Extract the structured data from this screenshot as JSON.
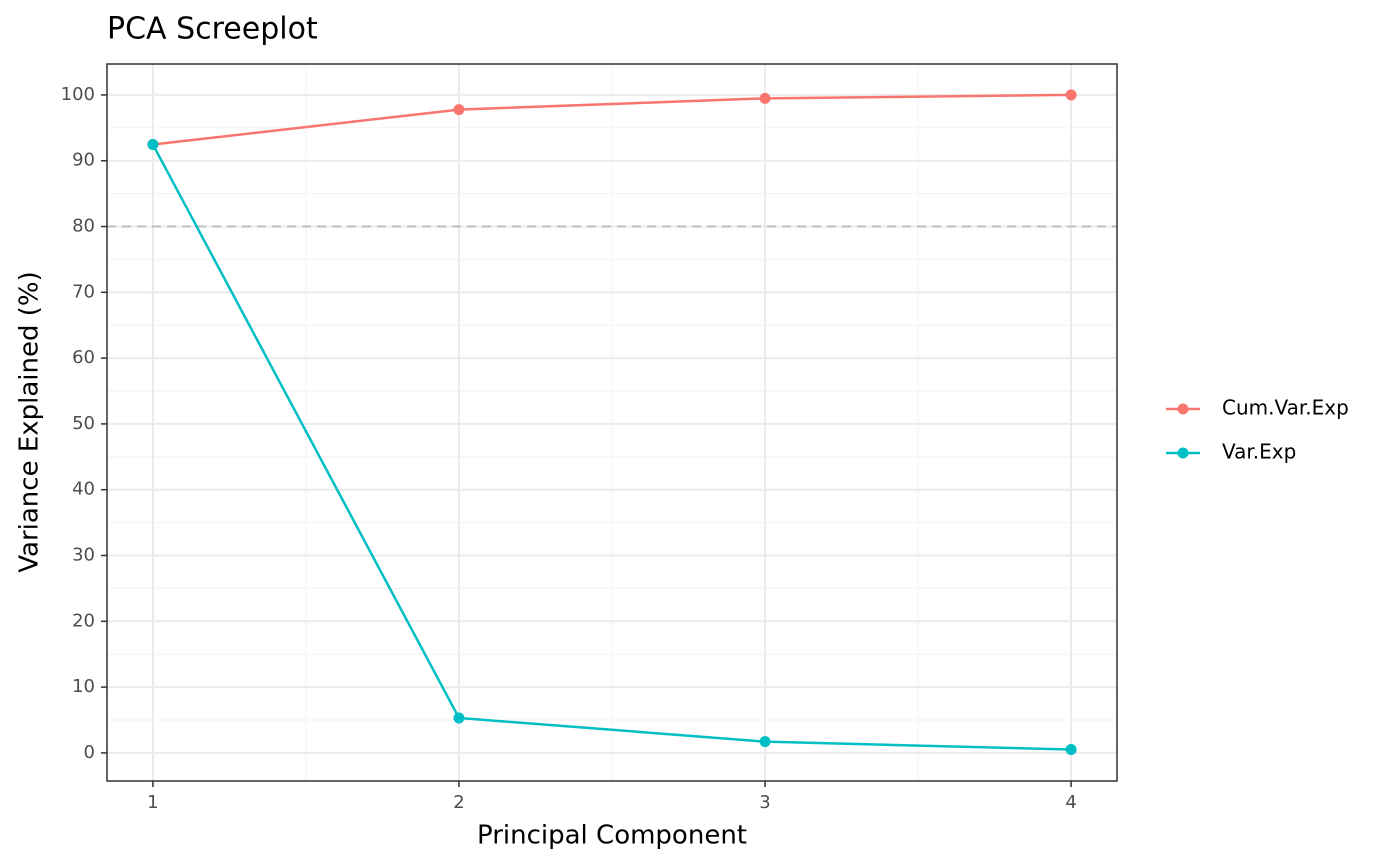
{
  "chart_data": {
    "type": "line",
    "title": "PCA Screeplot",
    "x_label": "Principal Component",
    "y_label": "Variance Explained (%)",
    "x": [
      1,
      2,
      3,
      4
    ],
    "series": [
      {
        "name": "Cum.Var.Exp",
        "color": "#F8766D",
        "values": [
          92.46,
          97.77,
          99.48,
          100
        ]
      },
      {
        "name": "Var.Exp",
        "color": "#00BFC4",
        "values": [
          92.46,
          5.31,
          1.71,
          0.52
        ]
      }
    ],
    "xlim": [
      0.85,
      4.15
    ],
    "xticks": [
      1,
      2,
      3,
      4
    ],
    "ylim": [
      -4.27,
      104.7
    ],
    "yticks": [
      0,
      10,
      20,
      30,
      40,
      50,
      60,
      70,
      80,
      90,
      100
    ],
    "hline": 80,
    "grid": true,
    "minor_grid": true,
    "legend": "right"
  }
}
